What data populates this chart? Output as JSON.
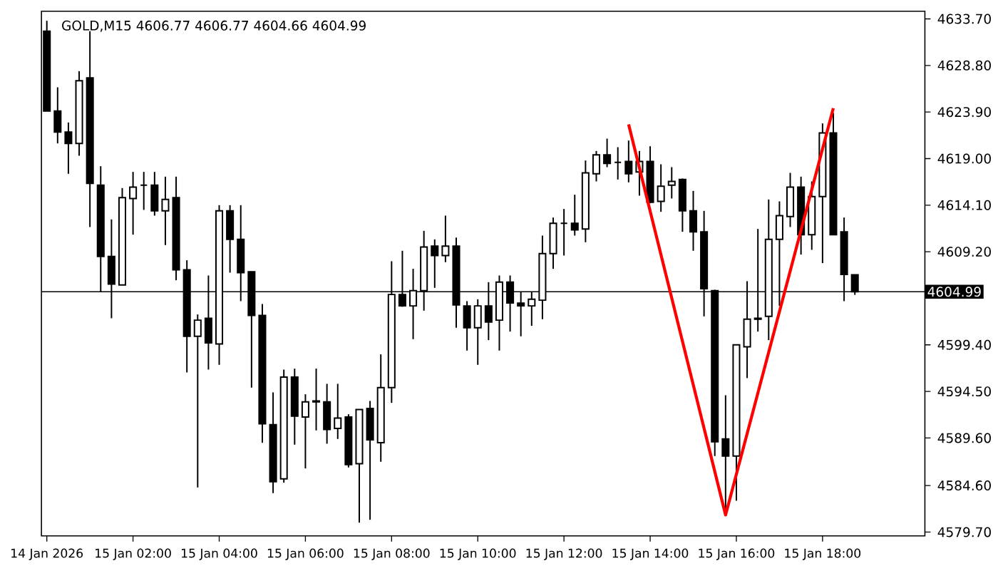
{
  "chart_data": {
    "type": "candlestick",
    "title": "GOLD,M15  4606.77 4606.77 4604.66 4604.99",
    "categories": [
      "14 Jan 2026",
      null,
      null,
      null,
      null,
      null,
      null,
      null,
      "15 Jan 02:00",
      null,
      null,
      null,
      null,
      null,
      null,
      null,
      "15 Jan 04:00",
      null,
      null,
      null,
      null,
      null,
      null,
      null,
      "15 Jan 06:00",
      null,
      null,
      null,
      null,
      null,
      null,
      null,
      "15 Jan 08:00",
      null,
      null,
      null,
      null,
      null,
      null,
      null,
      "15 Jan 10:00",
      null,
      null,
      null,
      null,
      null,
      null,
      null,
      "15 Jan 12:00",
      null,
      null,
      null,
      null,
      null,
      null,
      null,
      "15 Jan 14:00",
      null,
      null,
      null,
      null,
      null,
      null,
      null,
      "15 Jan 16:00",
      null,
      null,
      null,
      null,
      null,
      null,
      null,
      "15 Jan 18:00",
      null,
      null,
      null,
      null,
      null,
      null,
      null,
      null,
      null
    ],
    "ylim": [
      4579.3,
      4634.5
    ],
    "yticks": [
      {
        "value": 4579.7,
        "label": "4579.70"
      },
      {
        "value": 4584.6,
        "label": "4584.60"
      },
      {
        "value": 4589.6,
        "label": "4589.60"
      },
      {
        "value": 4594.5,
        "label": "4594.50"
      },
      {
        "value": 4599.4,
        "label": "4599.40"
      },
      {
        "value": 4609.2,
        "label": "4609.20"
      },
      {
        "value": 4614.1,
        "label": "4614.10"
      },
      {
        "value": 4619.0,
        "label": "4619.00"
      },
      {
        "value": 4623.9,
        "label": "4623.90"
      },
      {
        "value": 4628.8,
        "label": "4628.80"
      },
      {
        "value": 4633.7,
        "label": "4633.70"
      }
    ],
    "grid": false,
    "series": [
      {
        "color": "#000000",
        "ohlc": [
          [
            4632.4,
            4633.5,
            4624.0,
            4624.0
          ],
          [
            4624.0,
            4626.5,
            4620.6,
            4621.8
          ],
          [
            4621.8,
            4622.8,
            4617.4,
            4620.6
          ],
          [
            4620.6,
            4628.2,
            4619.3,
            4627.2
          ],
          [
            4627.5,
            4632.4,
            4611.8,
            4616.4
          ],
          [
            4616.2,
            4618.2,
            4605.0,
            4608.7
          ],
          [
            4608.7,
            4612.6,
            4602.2,
            4605.8
          ],
          [
            4605.7,
            4615.9,
            4605.7,
            4614.9
          ],
          [
            4614.8,
            4617.6,
            4611.0,
            4616.0
          ],
          [
            4616.2,
            4617.6,
            4613.6,
            4616.2
          ],
          [
            4616.2,
            4617.6,
            4613.0,
            4613.5
          ],
          [
            4613.5,
            4617.1,
            4609.9,
            4614.7
          ],
          [
            4614.9,
            4617.1,
            4606.2,
            4607.3
          ],
          [
            4607.3,
            4608.3,
            4596.5,
            4600.3
          ],
          [
            4600.3,
            4602.6,
            4584.4,
            4602.0
          ],
          [
            4602.2,
            4606.7,
            4596.8,
            4599.6
          ],
          [
            4599.5,
            4614.1,
            4597.3,
            4613.5
          ],
          [
            4613.5,
            4614.1,
            4607.0,
            4610.5
          ],
          [
            4610.5,
            4614.1,
            4604.0,
            4607.0
          ],
          [
            4607.1,
            4607.1,
            4594.9,
            4602.5
          ],
          [
            4602.5,
            4603.7,
            4589.1,
            4591.1
          ],
          [
            4591.0,
            4594.4,
            4583.8,
            4585.0
          ],
          [
            4585.3,
            4596.8,
            4584.9,
            4596.0
          ],
          [
            4596.0,
            4596.9,
            4588.9,
            4591.9
          ],
          [
            4591.8,
            4594.2,
            4586.4,
            4593.4
          ],
          [
            4593.4,
            4596.9,
            4590.4,
            4593.5
          ],
          [
            4593.4,
            4595.3,
            4589.0,
            4590.5
          ],
          [
            4590.6,
            4595.3,
            4589.5,
            4591.7
          ],
          [
            4591.8,
            4592.1,
            4586.5,
            4586.8
          ],
          [
            4586.9,
            4592.6,
            4580.7,
            4592.6
          ],
          [
            4592.7,
            4593.5,
            4581.0,
            4589.4
          ],
          [
            4589.1,
            4598.4,
            4587.1,
            4594.9
          ],
          [
            4594.9,
            4608.2,
            4593.3,
            4604.7
          ],
          [
            4604.7,
            4609.3,
            4603.4,
            4603.5
          ],
          [
            4603.5,
            4607.4,
            4600.0,
            4605.1
          ],
          [
            4605.1,
            4611.4,
            4603.0,
            4609.7
          ],
          [
            4609.8,
            4610.5,
            4605.4,
            4608.8
          ],
          [
            4608.8,
            4613.0,
            4608.1,
            4609.8
          ],
          [
            4609.8,
            4610.7,
            4601.2,
            4603.6
          ],
          [
            4603.5,
            4604.0,
            4598.8,
            4601.2
          ],
          [
            4601.2,
            4604.2,
            4597.3,
            4603.5
          ],
          [
            4603.5,
            4606.0,
            4599.9,
            4601.8
          ],
          [
            4602.0,
            4606.7,
            4598.8,
            4606.0
          ],
          [
            4606.0,
            4606.7,
            4600.8,
            4603.8
          ],
          [
            4603.8,
            4605.0,
            4600.3,
            4603.5
          ],
          [
            4603.5,
            4605.0,
            4601.4,
            4604.2
          ],
          [
            4604.1,
            4610.9,
            4602.1,
            4609.0
          ],
          [
            4609.0,
            4612.8,
            4607.4,
            4612.2
          ],
          [
            4612.2,
            4613.7,
            4608.8,
            4612.2
          ],
          [
            4612.2,
            4615.2,
            4610.9,
            4611.5
          ],
          [
            4611.6,
            4618.8,
            4610.2,
            4617.5
          ],
          [
            4617.4,
            4619.8,
            4616.6,
            4619.4
          ],
          [
            4619.4,
            4621.1,
            4618.1,
            4618.5
          ],
          [
            4618.6,
            4620.2,
            4616.8,
            4618.6
          ],
          [
            4618.7,
            4620.9,
            4616.5,
            4617.4
          ],
          [
            4617.6,
            4619.8,
            4615.1,
            4618.7
          ],
          [
            4618.7,
            4620.3,
            4614.3,
            4614.4
          ],
          [
            4614.5,
            4618.4,
            4613.4,
            4616.1
          ],
          [
            4616.2,
            4618.1,
            4614.8,
            4616.6
          ],
          [
            4616.8,
            4616.9,
            4611.3,
            4613.5
          ],
          [
            4613.5,
            4615.6,
            4609.3,
            4611.3
          ],
          [
            4611.3,
            4613.5,
            4602.4,
            4605.3
          ],
          [
            4605.1,
            4605.2,
            4587.7,
            4589.2
          ],
          [
            4589.5,
            4594.1,
            4581.9,
            4587.7
          ],
          [
            4587.7,
            4599.4,
            4583.0,
            4599.4
          ],
          [
            4599.2,
            4606.1,
            4595.9,
            4602.1
          ],
          [
            4602.1,
            4611.6,
            4600.8,
            4602.2
          ],
          [
            4602.4,
            4614.7,
            4599.9,
            4610.5
          ],
          [
            4610.5,
            4614.5,
            4603.5,
            4613.0
          ],
          [
            4612.9,
            4617.5,
            4611.8,
            4616.0
          ],
          [
            4616.0,
            4617.1,
            4608.9,
            4611.0
          ],
          [
            4611.0,
            4616.6,
            4609.4,
            4615.0
          ],
          [
            4615.0,
            4622.7,
            4608.0,
            4621.7
          ],
          [
            4621.7,
            4623.8,
            4611.0,
            4611.0
          ],
          [
            4611.3,
            4612.8,
            4604.0,
            4606.8
          ],
          [
            4606.77,
            4606.77,
            4604.66,
            4604.99
          ],
          null,
          null,
          null,
          null,
          null,
          null
        ]
      },
      {
        "type": "line",
        "color": "#ff0000",
        "values": [
          null,
          null,
          null,
          null,
          null,
          null,
          null,
          null,
          null,
          null,
          null,
          null,
          null,
          null,
          null,
          null,
          null,
          null,
          null,
          null,
          null,
          null,
          null,
          null,
          null,
          null,
          null,
          null,
          null,
          null,
          null,
          null,
          null,
          null,
          null,
          null,
          null,
          null,
          null,
          null,
          null,
          null,
          null,
          null,
          null,
          null,
          null,
          null,
          null,
          null,
          null,
          null,
          null,
          null,
          4622.6,
          null,
          null,
          null,
          null,
          null,
          null,
          null,
          null,
          4581.5,
          null,
          null,
          null,
          null,
          null,
          null,
          null,
          null,
          null,
          4624.3,
          null,
          null,
          null,
          null,
          null,
          null,
          null,
          null
        ]
      }
    ],
    "ref_lines": [
      {
        "axis": "y",
        "value": 4604.99,
        "label": "4604.99",
        "color": "#000000"
      }
    ]
  }
}
